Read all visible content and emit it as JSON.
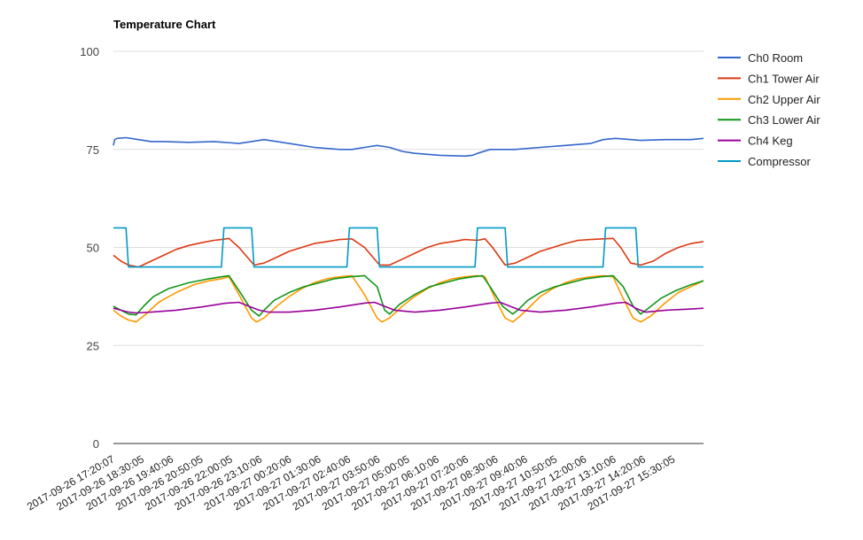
{
  "chart_data": {
    "type": "line",
    "title": "Temperature Chart",
    "ylim": [
      0,
      100
    ],
    "yticks": [
      0,
      25,
      50,
      75,
      100
    ],
    "xticks": [
      "2017-09-26 17:20:07",
      "2017-09-26 18:30:05",
      "2017-09-26 19:40:06",
      "2017-09-26 20:50:05",
      "2017-09-26 22:00:05",
      "2017-09-26 23:10:06",
      "2017-09-27 00:20:06",
      "2017-09-27 01:30:06",
      "2017-09-27 02:40:06",
      "2017-09-27 03:50:06",
      "2017-09-27 05:00:05",
      "2017-09-27 06:10:06",
      "2017-09-27 07:20:06",
      "2017-09-27 08:30:06",
      "2017-09-27 09:40:06",
      "2017-09-27 10:50:05",
      "2017-09-27 12:00:06",
      "2017-09-27 13:10:06",
      "2017-09-27 14:20:06",
      "2017-09-27 15:30:05"
    ],
    "x_range_hours": [
      0,
      23.5
    ],
    "legend_position": "right",
    "series": [
      {
        "name": "Ch0 Room",
        "color": "#3366cc",
        "x": [
          0,
          0.05,
          0.15,
          0.5,
          1.0,
          1.5,
          2.0,
          3.0,
          4.0,
          5.0,
          5.5,
          6.0,
          7.0,
          8.0,
          9.0,
          9.5,
          10.0,
          10.5,
          11.0,
          11.5,
          12.0,
          13.0,
          14.0,
          14.3,
          14.5,
          15.0,
          16.0,
          17.0,
          18.0,
          19.0,
          19.5,
          20.0,
          21.0,
          22.0,
          23.0,
          23.5
        ],
        "values": [
          76,
          77.5,
          77.8,
          78.0,
          77.5,
          77.0,
          77.0,
          76.8,
          77.0,
          76.5,
          77.0,
          77.5,
          76.5,
          75.5,
          75.0,
          75.0,
          75.5,
          76.0,
          75.5,
          74.5,
          74.0,
          73.5,
          73.3,
          73.5,
          74.0,
          75.0,
          75.0,
          75.5,
          76.0,
          76.5,
          77.5,
          77.8,
          77.3,
          77.5,
          77.5,
          77.8
        ]
      },
      {
        "name": "Ch1 Tower Air",
        "color": "#dc3912",
        "x": [
          0,
          0.3,
          0.6,
          1.0,
          1.5,
          2.0,
          2.5,
          3.0,
          3.5,
          4.0,
          4.3,
          4.6,
          5.0,
          5.6,
          6.0,
          6.5,
          7.0,
          7.5,
          8.0,
          8.5,
          9.0,
          9.5,
          10.0,
          10.6,
          11.0,
          11.5,
          12.0,
          12.5,
          13.0,
          13.5,
          14.0,
          14.5,
          14.8,
          15.1,
          15.6,
          16.0,
          16.5,
          17.0,
          17.5,
          18.0,
          18.5,
          19.0,
          19.5,
          19.9,
          20.2,
          20.6,
          21.0,
          21.5,
          22.0,
          22.5,
          23.0,
          23.5
        ],
        "values": [
          48,
          46.5,
          45.5,
          45,
          46.5,
          48,
          49.5,
          50.5,
          51.2,
          51.8,
          52,
          52.3,
          50,
          45.5,
          46,
          47.5,
          49,
          50,
          51,
          51.5,
          52,
          52.2,
          50,
          45.5,
          45.5,
          47,
          48.5,
          50,
          51,
          51.5,
          52,
          51.8,
          52.2,
          50,
          45.5,
          46,
          47.5,
          49,
          50,
          51,
          51.8,
          52,
          52.2,
          52.3,
          50,
          46,
          45.5,
          46.5,
          48.5,
          50,
          51,
          51.5
        ]
      },
      {
        "name": "Ch2 Upper Air",
        "color": "#ff9900",
        "x": [
          0,
          0.3,
          0.6,
          0.9,
          1.3,
          1.8,
          2.5,
          3.2,
          3.8,
          4.3,
          4.6,
          5.0,
          5.5,
          5.7,
          6.0,
          6.5,
          7.0,
          7.5,
          8.0,
          8.5,
          9.0,
          9.5,
          10.0,
          10.5,
          10.7,
          11.0,
          11.5,
          12.0,
          12.5,
          13.0,
          13.5,
          14.0,
          14.5,
          14.8,
          15.2,
          15.6,
          15.9,
          16.2,
          16.6,
          17.0,
          17.5,
          18.0,
          18.5,
          19.0,
          19.5,
          19.9,
          20.3,
          20.7,
          21.0,
          21.4,
          22.0,
          22.5,
          23.0,
          23.5
        ],
        "values": [
          34,
          32.5,
          31.5,
          31,
          33,
          36,
          38.5,
          40.5,
          41.5,
          42,
          42.5,
          38,
          32,
          31,
          32,
          35,
          37.5,
          39.5,
          41,
          42,
          42.5,
          42.8,
          38,
          32,
          31,
          32,
          35,
          37.5,
          39.5,
          41,
          42,
          42.5,
          42.8,
          42.5,
          37,
          32,
          31,
          32.5,
          35,
          37.5,
          39.5,
          41,
          42,
          42.5,
          42.8,
          42.5,
          37,
          32,
          31,
          32.5,
          36,
          38.5,
          40,
          41.5
        ]
      },
      {
        "name": "Ch3 Lower Air",
        "color": "#109618",
        "x": [
          0,
          0.3,
          0.6,
          0.9,
          1.2,
          1.6,
          2.2,
          3.0,
          3.8,
          4.3,
          4.6,
          5.0,
          5.5,
          5.8,
          6.0,
          6.4,
          7.0,
          7.6,
          8.2,
          8.8,
          9.4,
          10.0,
          10.5,
          10.8,
          11.0,
          11.4,
          12.0,
          12.6,
          13.2,
          13.8,
          14.3,
          14.7,
          15.0,
          15.5,
          15.9,
          16.1,
          16.5,
          17.0,
          17.6,
          18.2,
          18.8,
          19.4,
          19.9,
          20.3,
          20.7,
          21.0,
          21.3,
          21.8,
          22.4,
          23.0,
          23.5
        ],
        "values": [
          35,
          34,
          33,
          32.8,
          35,
          37.5,
          39.5,
          41,
          42,
          42.5,
          42.8,
          39,
          34,
          32.5,
          34,
          36.5,
          38.5,
          40,
          41,
          42,
          42.5,
          42.8,
          40,
          34,
          33,
          35.5,
          38,
          40,
          41,
          42,
          42.5,
          42.8,
          40,
          35,
          33,
          34,
          36.5,
          38.5,
          40,
          41,
          42,
          42.5,
          42.8,
          40,
          35,
          33,
          34.5,
          37,
          39,
          40.5,
          41.5
        ]
      },
      {
        "name": "Ch4 Keg",
        "color": "#990099",
        "x": [
          0,
          0.3,
          0.6,
          0.9,
          1.5,
          2.5,
          3.5,
          4.5,
          5.0,
          5.4,
          5.8,
          6.2,
          7.0,
          8.0,
          9.0,
          10.0,
          10.4,
          10.8,
          11.2,
          12.0,
          13.0,
          14.0,
          15.0,
          15.4,
          15.8,
          16.2,
          17.0,
          18.0,
          19.0,
          20.0,
          20.4,
          20.8,
          21.2,
          22.0,
          23.0,
          23.5
        ],
        "values": [
          34.5,
          34,
          33.5,
          33.3,
          33.5,
          34,
          34.8,
          35.8,
          36,
          35,
          34,
          33.5,
          33.5,
          34,
          34.8,
          35.8,
          36,
          35,
          34,
          33.5,
          34,
          34.8,
          35.8,
          36,
          35,
          34,
          33.5,
          34,
          34.8,
          35.8,
          36,
          34.5,
          33.5,
          34,
          34.3,
          34.5
        ]
      },
      {
        "name": "Compressor",
        "color": "#0099c6",
        "x": [
          0,
          0.5,
          0.6,
          4.3,
          4.4,
          5.5,
          5.6,
          9.3,
          9.4,
          10.5,
          10.6,
          14.4,
          14.5,
          15.6,
          15.7,
          19.5,
          19.6,
          20.8,
          20.9,
          23.5
        ],
        "values": [
          55,
          55,
          45,
          45,
          55,
          55,
          45,
          45,
          55,
          55,
          45,
          45,
          55,
          55,
          45,
          45,
          55,
          55,
          45,
          45
        ]
      }
    ]
  }
}
